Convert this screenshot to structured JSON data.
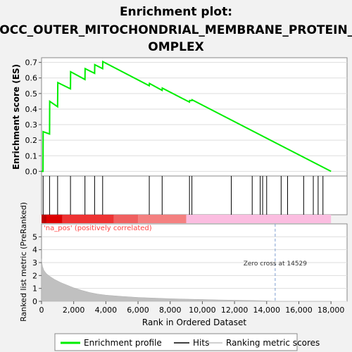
{
  "chart_data": [
    {
      "type": "line",
      "title": [
        "Enrichment plot:",
        "GOCC_OUTER_MITOCHONDRIAL_MEMBRANE_PROTEIN_C",
        "OMPLEX"
      ],
      "ylabel": "Enrichment score (ES)",
      "ylim": [
        -0.03,
        0.73
      ],
      "yticks": [
        "0.0",
        "0.1",
        "0.2",
        "0.3",
        "0.4",
        "0.5",
        "0.6",
        "0.7"
      ],
      "series": [
        {
          "name": "Enrichment profile",
          "color": "#00ee00",
          "x": [
            0,
            90,
            100,
            500,
            510,
            1000,
            1010,
            1800,
            1810,
            2700,
            2710,
            3300,
            3310,
            3800,
            3810,
            6700,
            6710,
            7500,
            7510,
            9200,
            9210,
            9350,
            9360,
            18000
          ],
          "y": [
            0.0,
            0.0,
            0.255,
            0.24,
            0.45,
            0.415,
            0.57,
            0.53,
            0.64,
            0.59,
            0.66,
            0.63,
            0.685,
            0.66,
            0.705,
            0.55,
            0.565,
            0.52,
            0.535,
            0.445,
            0.455,
            0.455,
            0.46,
            0.0
          ]
        }
      ]
    },
    {
      "type": "scatter",
      "series": [
        {
          "name": "Hits",
          "color": "#000000",
          "x": [
            100,
            500,
            1000,
            1800,
            2700,
            3300,
            3800,
            6700,
            7500,
            9200,
            9350,
            11800,
            13100,
            13600,
            13750,
            14000,
            14900,
            15300,
            16300,
            16900,
            17200,
            17500
          ]
        }
      ]
    },
    {
      "type": "area",
      "ylabel": "Ranked list metric (PreRanked)",
      "xlabel": "Rank in Ordered Dataset",
      "xlim": [
        0,
        19000
      ],
      "ylim": [
        0,
        6
      ],
      "xticks": [
        "0",
        "2,000",
        "4,000",
        "6,000",
        "8,000",
        "10,000",
        "12,000",
        "14,000",
        "16,000",
        "18,000"
      ],
      "yticks": [
        "0",
        "1",
        "2",
        "3",
        "4",
        "5"
      ],
      "positive_label": "'na_pos' (positively correlated)",
      "zero_cross_label": "Zero cross at 14529",
      "zero_cross": 14529,
      "series": [
        {
          "name": "Ranking metric scores",
          "color": "#c0c0c0",
          "x": [
            0,
            20,
            60,
            150,
            300,
            500,
            800,
            1200,
            1600,
            2000,
            2500,
            3000,
            3500,
            4000,
            5000,
            6000,
            7000,
            8000,
            9000,
            10000,
            11000,
            12000,
            13000,
            14000,
            14529,
            15000,
            16000,
            17000,
            18000
          ],
          "y": [
            3.3,
            3.0,
            2.7,
            2.4,
            2.15,
            1.95,
            1.7,
            1.45,
            1.25,
            1.05,
            0.85,
            0.68,
            0.56,
            0.48,
            0.38,
            0.3,
            0.25,
            0.2,
            0.17,
            0.14,
            0.11,
            0.09,
            0.07,
            0.04,
            0.0,
            -0.01,
            -0.02,
            -0.03,
            -0.04
          ]
        }
      ]
    }
  ],
  "legend": [
    {
      "label": "Enrichment profile",
      "color": "#00ee00"
    },
    {
      "label": "Hits",
      "color": "#000000"
    },
    {
      "label": "Ranking metric scores",
      "color": "#c0c0c0"
    }
  ],
  "colors": {
    "pos_bar_segments": [
      "#dd0000",
      "#ee3333",
      "#f06060",
      "#f48080",
      "#fbbde0"
    ],
    "ranked_bg_label": "#ff4444",
    "zero_line": "#7f9fd0"
  }
}
